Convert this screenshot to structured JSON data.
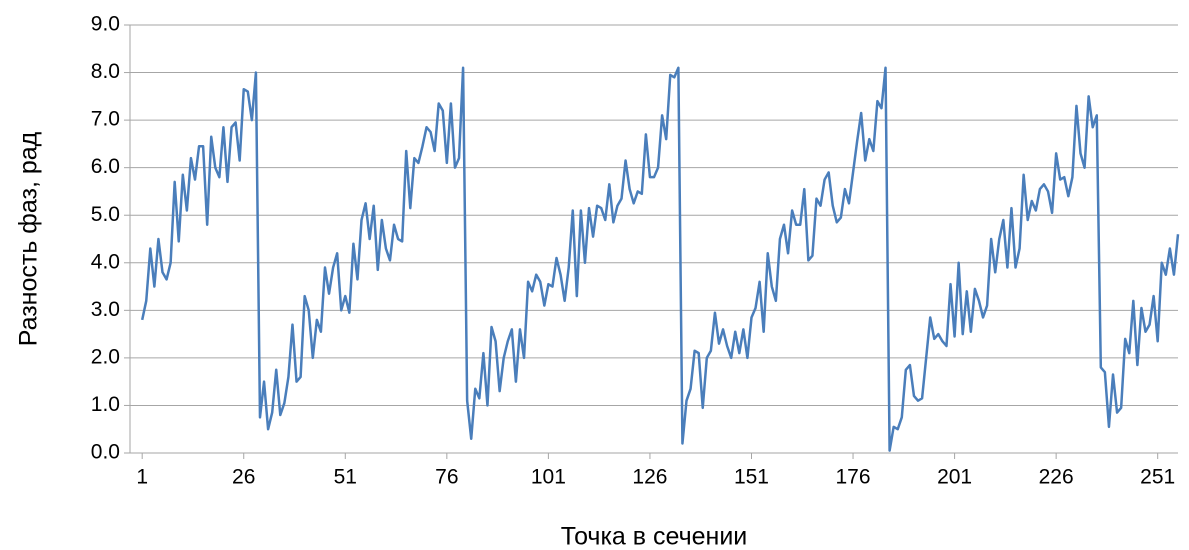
{
  "chart_data": {
    "type": "line",
    "x_label": "Точка в сечении",
    "y_label": "Разность фаз, рад",
    "color": "#4a7ebb",
    "grid": true,
    "xlim": [
      -2,
      256
    ],
    "xticks": [
      1,
      26,
      51,
      76,
      101,
      126,
      151,
      176,
      201,
      226,
      251
    ],
    "ylim": [
      0,
      9
    ],
    "yticks": [
      {
        "value": 0,
        "label": "0.0"
      },
      {
        "value": 1,
        "label": "1.0"
      },
      {
        "value": 2,
        "label": "2.0"
      },
      {
        "value": 3,
        "label": "3.0"
      },
      {
        "value": 4,
        "label": "4.0"
      },
      {
        "value": 5,
        "label": "5.0"
      },
      {
        "value": 6,
        "label": "6.0"
      },
      {
        "value": 7,
        "label": "7.0"
      },
      {
        "value": 8,
        "label": "8.0"
      },
      {
        "value": 9,
        "label": "9.0"
      }
    ],
    "x": [
      1,
      2,
      3,
      4,
      5,
      6,
      7,
      8,
      9,
      10,
      11,
      12,
      13,
      14,
      15,
      16,
      17,
      18,
      19,
      20,
      21,
      22,
      23,
      24,
      25,
      26,
      27,
      28,
      29,
      30,
      31,
      32,
      33,
      34,
      35,
      36,
      37,
      38,
      39,
      40,
      41,
      42,
      43,
      44,
      45,
      46,
      47,
      48,
      49,
      50,
      51,
      52,
      53,
      54,
      55,
      56,
      57,
      58,
      59,
      60,
      61,
      62,
      63,
      64,
      65,
      66,
      67,
      68,
      69,
      70,
      71,
      72,
      73,
      74,
      75,
      76,
      77,
      78,
      79,
      80,
      81,
      82,
      83,
      84,
      85,
      86,
      87,
      88,
      89,
      90,
      91,
      92,
      93,
      94,
      95,
      96,
      97,
      98,
      99,
      100,
      101,
      102,
      103,
      104,
      105,
      106,
      107,
      108,
      109,
      110,
      111,
      112,
      113,
      114,
      115,
      116,
      117,
      118,
      119,
      120,
      121,
      122,
      123,
      124,
      125,
      126,
      127,
      128,
      129,
      130,
      131,
      132,
      133,
      134,
      135,
      136,
      137,
      138,
      139,
      140,
      141,
      142,
      143,
      144,
      145,
      146,
      147,
      148,
      149,
      150,
      151,
      152,
      153,
      154,
      155,
      156,
      157,
      158,
      159,
      160,
      161,
      162,
      163,
      164,
      165,
      166,
      167,
      168,
      169,
      170,
      171,
      172,
      173,
      174,
      175,
      176,
      177,
      178,
      179,
      180,
      181,
      182,
      183,
      184,
      185,
      186,
      187,
      188,
      189,
      190,
      191,
      192,
      193,
      194,
      195,
      196,
      197,
      198,
      199,
      200,
      201,
      202,
      203,
      204,
      205,
      206,
      207,
      208,
      209,
      210,
      211,
      212,
      213,
      214,
      215,
      216,
      217,
      218,
      219,
      220,
      221,
      222,
      223,
      224,
      225,
      226,
      227,
      228,
      229,
      230,
      231,
      232,
      233,
      234,
      235,
      236,
      237,
      238,
      239,
      240,
      241,
      242,
      243,
      244,
      245,
      246,
      247,
      248,
      249,
      250,
      251,
      252,
      253,
      254,
      255,
      256
    ],
    "values": [
      2.8,
      3.2,
      4.3,
      3.5,
      4.5,
      3.8,
      3.65,
      4.0,
      5.7,
      4.45,
      5.85,
      5.1,
      6.2,
      5.75,
      6.45,
      6.45,
      4.8,
      6.65,
      6.0,
      5.8,
      6.85,
      5.7,
      6.85,
      6.95,
      6.15,
      7.65,
      7.6,
      7.0,
      8.0,
      0.75,
      1.5,
      0.5,
      0.85,
      1.75,
      0.8,
      1.05,
      1.6,
      2.7,
      1.5,
      1.6,
      3.3,
      3.0,
      2.0,
      2.8,
      2.55,
      3.9,
      3.35,
      3.9,
      4.2,
      3.0,
      3.3,
      2.95,
      4.4,
      3.65,
      4.9,
      5.25,
      4.5,
      5.2,
      3.85,
      4.9,
      4.3,
      4.05,
      4.8,
      4.5,
      4.45,
      6.35,
      5.15,
      6.2,
      6.1,
      6.45,
      6.85,
      6.75,
      6.35,
      7.35,
      7.2,
      6.1,
      7.35,
      6.0,
      6.2,
      8.1,
      1.1,
      0.3,
      1.35,
      1.15,
      2.1,
      1.0,
      2.65,
      2.35,
      1.3,
      2.0,
      2.35,
      2.6,
      1.5,
      2.6,
      2.0,
      3.6,
      3.4,
      3.75,
      3.6,
      3.1,
      3.55,
      3.5,
      4.1,
      3.75,
      3.2,
      3.9,
      5.1,
      3.3,
      5.1,
      4.0,
      5.15,
      4.55,
      5.2,
      5.15,
      4.9,
      5.65,
      4.85,
      5.2,
      5.35,
      6.15,
      5.55,
      5.25,
      5.5,
      5.45,
      6.7,
      5.8,
      5.8,
      6.0,
      7.1,
      6.6,
      7.95,
      7.9,
      8.1,
      0.2,
      1.1,
      1.35,
      2.15,
      2.1,
      0.95,
      2.0,
      2.15,
      2.95,
      2.3,
      2.6,
      2.25,
      2.0,
      2.55,
      2.1,
      2.6,
      2.0,
      2.85,
      3.05,
      3.6,
      2.55,
      4.2,
      3.5,
      3.2,
      4.5,
      4.8,
      4.2,
      5.1,
      4.8,
      4.8,
      5.55,
      4.05,
      4.15,
      5.35,
      5.2,
      5.75,
      5.9,
      5.2,
      4.85,
      4.95,
      5.55,
      5.25,
      5.9,
      6.55,
      7.15,
      6.15,
      6.6,
      6.35,
      7.4,
      7.25,
      8.1,
      0.05,
      0.55,
      0.5,
      0.75,
      1.75,
      1.85,
      1.2,
      1.1,
      1.15,
      2.0,
      2.85,
      2.4,
      2.5,
      2.35,
      2.25,
      3.55,
      2.45,
      4.0,
      2.5,
      3.4,
      2.55,
      3.45,
      3.2,
      2.85,
      3.1,
      4.5,
      3.8,
      4.5,
      4.9,
      3.9,
      5.15,
      3.9,
      4.3,
      5.85,
      4.9,
      5.3,
      5.1,
      5.55,
      5.65,
      5.5,
      5.05,
      6.3,
      5.75,
      5.8,
      5.4,
      5.8,
      7.3,
      6.3,
      6.0,
      7.5,
      6.85,
      7.1,
      1.8,
      1.7,
      0.55,
      1.65,
      0.85,
      0.95,
      2.4,
      2.1,
      3.2,
      1.85,
      3.05,
      2.55,
      2.7,
      3.3,
      2.35,
      4.0,
      3.75,
      4.3,
      3.75,
      4.6
    ]
  }
}
